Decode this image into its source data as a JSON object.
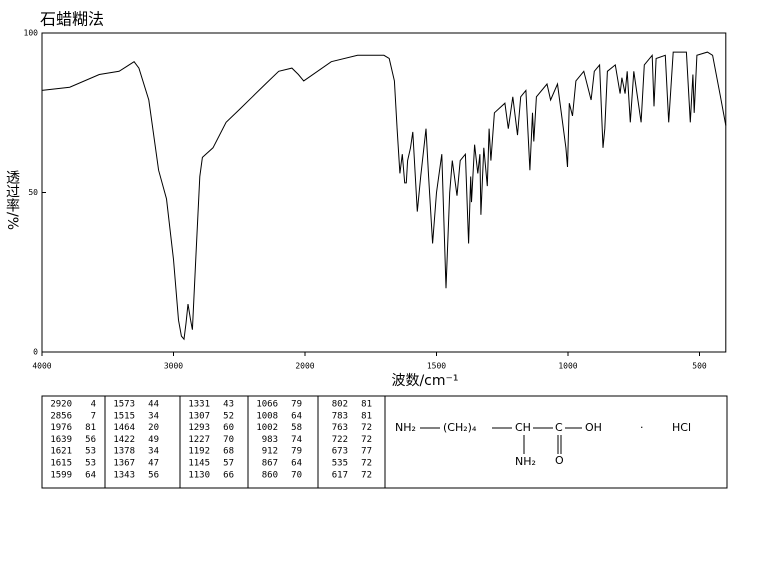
{
  "chart_data": {
    "type": "line",
    "title": "石蜡糊法",
    "xlabel": "波数/cm⁻¹",
    "ylabel": "透过率/%",
    "xlim": [
      4000,
      400
    ],
    "xticks": [
      4000,
      3000,
      2000,
      1500,
      1000,
      500
    ],
    "ylim": [
      0,
      100
    ],
    "yticks": [
      0,
      50,
      100
    ],
    "color": "#000000",
    "x": [
      4000,
      3789,
      3564,
      3414,
      3300,
      3263,
      3188,
      3113,
      3053,
      3000,
      2962,
      2940,
      2920,
      2905,
      2890,
      2870,
      2856,
      2830,
      2800,
      2780,
      2700,
      2600,
      2500,
      2400,
      2300,
      2200,
      2100,
      2050,
      2010,
      1900,
      1800,
      1700,
      1680,
      1660,
      1650,
      1639,
      1630,
      1621,
      1615,
      1610,
      1599,
      1590,
      1573,
      1560,
      1540,
      1530,
      1515,
      1500,
      1480,
      1464,
      1450,
      1440,
      1422,
      1410,
      1390,
      1378,
      1370,
      1367,
      1355,
      1343,
      1335,
      1331,
      1320,
      1307,
      1300,
      1293,
      1280,
      1240,
      1227,
      1210,
      1192,
      1180,
      1160,
      1145,
      1135,
      1130,
      1120,
      1080,
      1066,
      1040,
      1008,
      1002,
      995,
      983,
      970,
      940,
      912,
      900,
      880,
      867,
      860,
      850,
      820,
      802,
      795,
      783,
      775,
      763,
      750,
      722,
      710,
      680,
      673,
      665,
      630,
      617,
      600,
      550,
      535,
      525,
      520,
      510,
      470,
      450,
      420,
      400
    ],
    "values": [
      82,
      83,
      87,
      88,
      91,
      89,
      79,
      57,
      48,
      29,
      10,
      5,
      4,
      9,
      15,
      10,
      7,
      30,
      55,
      61,
      64,
      72,
      76,
      80,
      84,
      88,
      89,
      87,
      85,
      91,
      93,
      93,
      92,
      85,
      70,
      56,
      62,
      53,
      53,
      60,
      64,
      69,
      44,
      55,
      70,
      55,
      34,
      50,
      62,
      20,
      50,
      60,
      49,
      60,
      62,
      34,
      55,
      47,
      65,
      56,
      62,
      43,
      64,
      52,
      70,
      60,
      75,
      78,
      70,
      80,
      68,
      80,
      82,
      57,
      75,
      66,
      80,
      84,
      79,
      84,
      64,
      58,
      78,
      74,
      85,
      88,
      79,
      88,
      90,
      64,
      70,
      88,
      90,
      81,
      86,
      81,
      88,
      72,
      88,
      72,
      90,
      93,
      77,
      92,
      93,
      72,
      94,
      94,
      72,
      87,
      75,
      93,
      94,
      93,
      80,
      71
    ]
  },
  "peak_table": [
    [
      [
        "2920",
        "4"
      ],
      [
        "2856",
        "7"
      ],
      [
        "1976",
        "81"
      ],
      [
        "1639",
        "56"
      ],
      [
        "1621",
        "53"
      ],
      [
        "1615",
        "53"
      ],
      [
        "1599",
        "64"
      ]
    ],
    [
      [
        "1573",
        "44"
      ],
      [
        "1515",
        "34"
      ],
      [
        "1464",
        "20"
      ],
      [
        "1422",
        "49"
      ],
      [
        "1378",
        "34"
      ],
      [
        "1367",
        "47"
      ],
      [
        "1343",
        "56"
      ]
    ],
    [
      [
        "1331",
        "43"
      ],
      [
        "1307",
        "52"
      ],
      [
        "1293",
        "60"
      ],
      [
        "1227",
        "70"
      ],
      [
        "1192",
        "68"
      ],
      [
        "1145",
        "57"
      ],
      [
        "1130",
        "66"
      ]
    ],
    [
      [
        "1066",
        "79"
      ],
      [
        "1008",
        "64"
      ],
      [
        "1002",
        "58"
      ],
      [
        "983",
        "74"
      ],
      [
        "912",
        "79"
      ],
      [
        "867",
        "64"
      ],
      [
        "860",
        "70"
      ]
    ],
    [
      [
        "802",
        "81"
      ],
      [
        "783",
        "81"
      ],
      [
        "763",
        "72"
      ],
      [
        "722",
        "72"
      ],
      [
        "673",
        "77"
      ],
      [
        "535",
        "72"
      ],
      [
        "617",
        "72"
      ]
    ]
  ],
  "structure": {
    "amine": "NH₂",
    "chain": "(CH₂)₄",
    "ch": "CH",
    "c": "C",
    "oh": "OH",
    "amine2": "NH₂",
    "o": "O",
    "dot": "·",
    "salt": "HCl"
  }
}
